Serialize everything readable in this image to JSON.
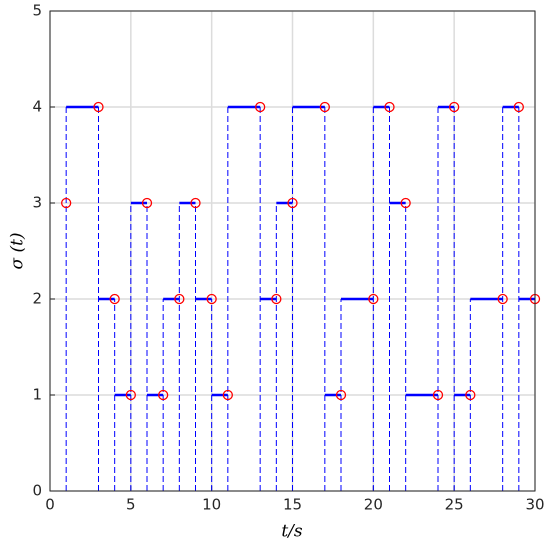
{
  "chart_data": {
    "type": "step",
    "xlabel": "t/s",
    "ylabel": "σ (t)",
    "x": [
      1,
      3,
      4,
      5,
      6,
      7,
      8,
      9,
      10,
      11,
      13,
      14,
      15,
      17,
      18,
      20,
      21,
      22,
      24,
      25,
      26,
      28,
      29,
      30
    ],
    "series": [
      {
        "color": "#0000ff",
        "values": [
          3,
          4,
          2,
          1,
          3,
          1,
          2,
          3,
          2,
          1,
          4,
          2,
          3,
          4,
          1,
          2,
          4,
          3,
          1,
          4,
          1,
          2,
          4,
          2
        ]
      }
    ],
    "marker_color": "#ff0000",
    "xlim": [
      0,
      30
    ],
    "xticks": [
      0,
      5,
      10,
      15,
      20,
      25,
      30
    ],
    "ylim": [
      0,
      5
    ],
    "yticks": [
      0,
      1,
      2,
      3,
      4,
      5
    ],
    "grid": true
  }
}
